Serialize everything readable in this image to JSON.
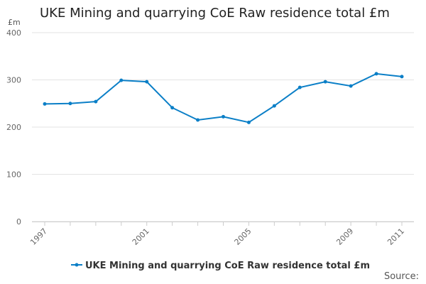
{
  "chart_data": {
    "type": "line",
    "title": "UKE Mining and quarrying CoE Raw residence total £m",
    "ylabel": "£m",
    "xlabel": "",
    "x": [
      1997,
      1998,
      1999,
      2000,
      2001,
      2002,
      2003,
      2004,
      2005,
      2006,
      2007,
      2008,
      2009,
      2010,
      2011
    ],
    "series": [
      {
        "name": "UKE Mining and quarrying CoE Raw residence total £m",
        "color": "#0b7fc7",
        "values": [
          249,
          250,
          254,
          299,
          296,
          241,
          215,
          222,
          210,
          245,
          284,
          296,
          287,
          313,
          307
        ]
      }
    ],
    "ylim": [
      0,
      400
    ],
    "yticks": [
      0,
      100,
      200,
      300,
      400
    ],
    "xtick_labels": [
      "1997",
      "2001",
      "2005",
      "2009",
      "2011"
    ],
    "grid": true,
    "legend": "bottom"
  },
  "source_label": "Source:"
}
